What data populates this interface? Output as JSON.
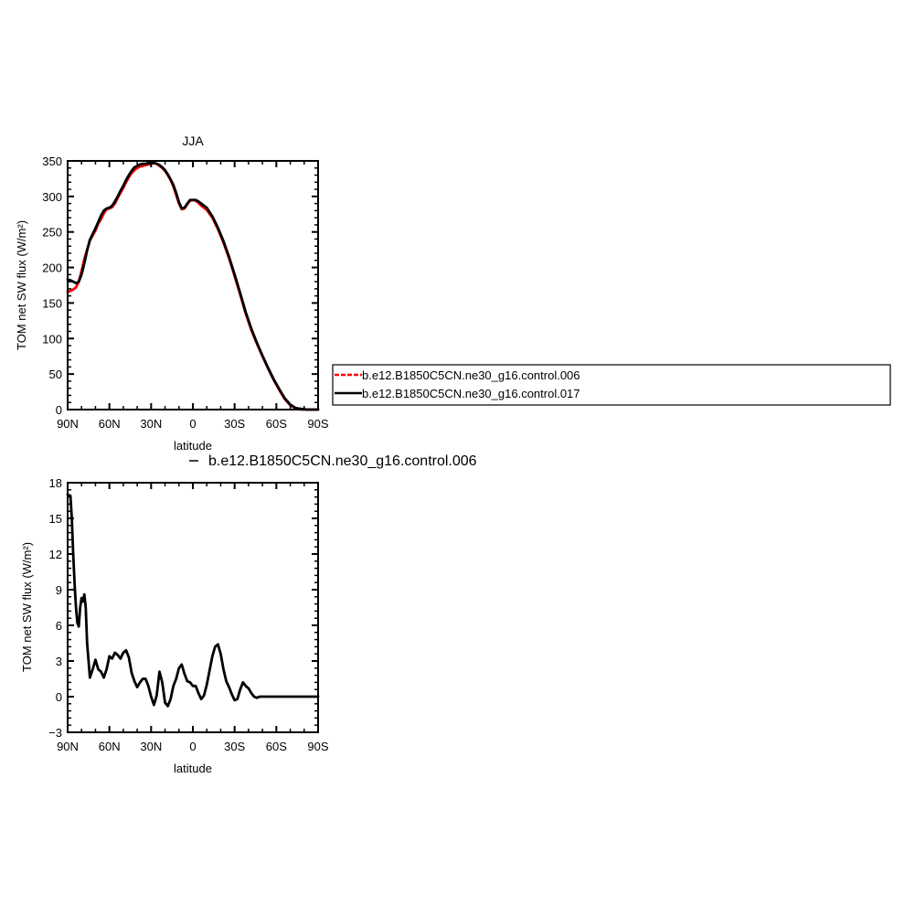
{
  "figure": {
    "legend": {
      "entries": [
        {
          "label": "b.e12.B1850C5CN.ne30_g16.control.006",
          "color": "#ff0000",
          "dash": true
        },
        {
          "label": "b.e12.B1850C5CN.ne30_g16.control.017",
          "color": "#000000",
          "dash": false
        }
      ]
    },
    "diff_label": "b.e12.B1850C5CN.ne30_g16.control.006"
  },
  "chart_data": [
    {
      "type": "line",
      "title": "JJA",
      "xlabel": "latitude",
      "ylabel": "TOM net SW flux (W/m²)",
      "xlim": [
        90,
        -90
      ],
      "ylim": [
        0,
        350
      ],
      "xticks": [
        90,
        60,
        30,
        0,
        -30,
        -60,
        -90
      ],
      "xtick_labels": [
        "90N",
        "60N",
        "30N",
        "0",
        "30S",
        "60S",
        "90S"
      ],
      "yticks": [
        0,
        50,
        100,
        150,
        200,
        250,
        300,
        350
      ],
      "ytick_labels": [
        "0",
        "50",
        "100",
        "150",
        "200",
        "250",
        "300",
        "350"
      ],
      "series": [
        {
          "name": "b.e12.B1850C5CN.ne30_g16.control.006",
          "color": "#ff0000",
          "x": [
            90,
            88,
            86,
            84,
            82,
            80,
            78,
            76,
            74,
            72,
            70,
            68,
            66,
            64,
            62,
            60,
            58,
            56,
            54,
            52,
            50,
            48,
            46,
            44,
            42,
            40,
            38,
            36,
            34,
            32,
            30,
            28,
            26,
            24,
            22,
            20,
            18,
            16,
            14,
            12,
            10,
            8,
            6,
            4,
            2,
            0,
            -2,
            -4,
            -6,
            -8,
            -10,
            -14,
            -18,
            -22,
            -26,
            -30,
            -34,
            -38,
            -42,
            -46,
            -50,
            -54,
            -58,
            -62,
            -66,
            -70,
            -74,
            -78,
            -82,
            -86,
            -90
          ],
          "y": [
            166,
            167,
            169,
            172,
            180,
            195,
            212,
            225,
            238,
            245,
            252,
            262,
            268,
            276,
            282,
            283,
            285,
            290,
            298,
            305,
            312,
            320,
            327,
            333,
            337,
            340,
            342,
            343,
            344,
            345,
            346,
            347,
            346,
            343,
            340,
            336,
            330,
            323,
            314,
            302,
            290,
            282,
            283,
            289,
            294,
            295,
            294,
            291,
            287,
            284,
            281,
            270,
            254,
            235,
            213,
            188,
            162,
            135,
            112,
            93,
            75,
            58,
            42,
            28,
            15,
            6,
            2,
            0,
            0,
            0,
            0
          ]
        },
        {
          "name": "b.e12.B1850C5CN.ne30_g16.control.017",
          "color": "#000000",
          "x": [
            90,
            88,
            86,
            84,
            82,
            80,
            78,
            76,
            74,
            72,
            70,
            68,
            66,
            64,
            62,
            60,
            58,
            56,
            54,
            52,
            50,
            48,
            46,
            44,
            42,
            40,
            38,
            36,
            34,
            32,
            30,
            28,
            26,
            24,
            22,
            20,
            18,
            16,
            14,
            12,
            10,
            8,
            6,
            4,
            2,
            0,
            -2,
            -4,
            -6,
            -8,
            -10,
            -14,
            -18,
            -22,
            -26,
            -30,
            -34,
            -38,
            -42,
            -46,
            -50,
            -54,
            -58,
            -62,
            -66,
            -70,
            -74,
            -78,
            -82,
            -86,
            -90
          ],
          "y": [
            183,
            182,
            180,
            178,
            180,
            190,
            206,
            224,
            239,
            247,
            255,
            264,
            273,
            280,
            283,
            284,
            287,
            293,
            300,
            308,
            315,
            323,
            330,
            336,
            341,
            343,
            345,
            346,
            346,
            347,
            347,
            347,
            346,
            344,
            341,
            337,
            331,
            324,
            316,
            305,
            292,
            283,
            284,
            290,
            295,
            295,
            295,
            293,
            290,
            287,
            284,
            272,
            256,
            237,
            215,
            190,
            164,
            137,
            114,
            94,
            76,
            59,
            43,
            29,
            16,
            7,
            2,
            1,
            0,
            0,
            0
          ]
        }
      ]
    },
    {
      "type": "line",
      "title": "",
      "xlabel": "latitude",
      "ylabel": "TOM net SW flux (W/m²)",
      "xlim": [
        90,
        -90
      ],
      "ylim": [
        -3,
        18
      ],
      "xticks": [
        90,
        60,
        30,
        0,
        -30,
        -60,
        -90
      ],
      "xtick_labels": [
        "90N",
        "60N",
        "30N",
        "0",
        "30S",
        "60S",
        "90S"
      ],
      "yticks": [
        -3,
        0,
        3,
        6,
        9,
        12,
        15,
        18
      ],
      "ytick_labels": [
        "−3",
        "0",
        "3",
        "6",
        "9",
        "12",
        "15",
        "18"
      ],
      "series": [
        {
          "name": "b.e12.B1850C5CN.ne30_g16.control.006",
          "color": "#000000",
          "x": [
            90,
            88,
            87,
            86,
            85,
            84,
            83,
            82,
            81,
            80,
            79,
            78,
            77,
            76,
            74,
            72,
            70,
            68,
            66,
            64,
            62,
            60,
            58,
            56,
            54,
            52,
            50,
            48,
            46,
            44,
            42,
            40,
            38,
            36,
            34,
            32,
            30,
            28,
            26,
            24,
            22,
            20,
            18,
            16,
            14,
            12,
            10,
            8,
            6,
            4,
            2,
            0,
            -2,
            -4,
            -6,
            -8,
            -10,
            -12,
            -14,
            -16,
            -18,
            -20,
            -22,
            -24,
            -26,
            -28,
            -30,
            -32,
            -34,
            -36,
            -38,
            -40,
            -42,
            -44,
            -46,
            -48,
            -50,
            -52,
            -54,
            -56,
            -58,
            -60,
            -62,
            -64,
            -66,
            -68,
            -70,
            -75,
            -80,
            -85,
            -90
          ],
          "y": [
            17,
            16.9,
            15,
            12,
            9.5,
            7.5,
            6.2,
            5.9,
            7.5,
            8.3,
            8.0,
            8.6,
            7.5,
            4.5,
            1.6,
            2.3,
            3.1,
            2.3,
            2.1,
            1.6,
            2.3,
            3.4,
            3.2,
            3.7,
            3.5,
            3.2,
            3.7,
            3.9,
            3.3,
            2.0,
            1.3,
            0.8,
            1.2,
            1.5,
            1.5,
            0.9,
            0.0,
            -0.7,
            0.1,
            2.1,
            1.2,
            -0.5,
            -0.8,
            -0.2,
            0.9,
            1.5,
            2.4,
            2.7,
            1.9,
            1.3,
            1.2,
            0.9,
            0.9,
            0.3,
            -0.2,
            0.1,
            1.0,
            2.2,
            3.4,
            4.2,
            4.4,
            3.6,
            2.3,
            1.3,
            0.8,
            0.2,
            -0.3,
            -0.2,
            0.6,
            1.2,
            0.9,
            0.7,
            0.3,
            0.0,
            -0.1,
            0,
            0,
            0,
            0,
            0,
            0,
            0,
            0,
            0,
            0,
            0,
            0,
            0,
            0,
            0,
            0
          ]
        }
      ]
    }
  ]
}
